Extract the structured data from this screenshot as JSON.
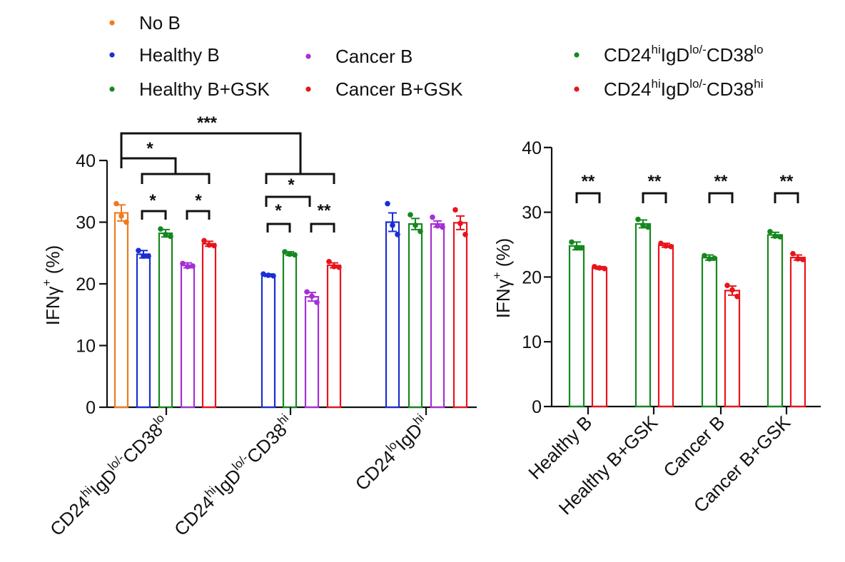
{
  "colors": {
    "no_b": "#f07a1e",
    "healthy_b": "#1a2ed4",
    "healthy_b_gsk": "#14881f",
    "cancer_b": "#a62fd6",
    "cancer_b_gsk": "#e8141b"
  },
  "legend_left": [
    {
      "key": "no_b",
      "label": "No B"
    },
    {
      "key": "healthy_b",
      "label": "Healthy B"
    },
    {
      "key": "healthy_b_gsk",
      "label": "Healthy B+GSK"
    },
    {
      "key": "cancer_b",
      "label": "Cancer B"
    },
    {
      "key": "cancer_b_gsk",
      "label": "Cancer B+GSK"
    }
  ],
  "legend_right": [
    {
      "color": "#14881f",
      "base": "CD24",
      "sup1": "hi",
      "mid": "IgD",
      "sup2": "lo/-",
      "mid2": "CD38",
      "sup3": "lo"
    },
    {
      "color": "#e8141b",
      "base": "CD24",
      "sup1": "hi",
      "mid": "IgD",
      "sup2": "lo/-",
      "mid2": "CD38",
      "sup3": "hi"
    }
  ],
  "chart_data": [
    {
      "type": "bar",
      "ylabel": "IFNγ+ (%)",
      "ylim": [
        0,
        40
      ],
      "yticks": [
        0,
        10,
        20,
        30,
        40
      ],
      "groups": [
        {
          "name": "CD24hiIgDlo/-CD38lo",
          "parts": [
            "CD24",
            "hi",
            "IgD",
            "lo/-",
            "CD38",
            "lo"
          ]
        },
        {
          "name": "CD24hiIgDlo/-CD38hi",
          "parts": [
            "CD24",
            "hi",
            "IgD",
            "lo/-",
            "CD38",
            "hi"
          ]
        },
        {
          "name": "CD24loIgDhi",
          "parts": [
            "CD24",
            "lo",
            "IgD",
            "hi",
            "",
            ""
          ]
        }
      ],
      "series": [
        {
          "name": "No B",
          "key": "no_b",
          "values": [
            31.5,
            null,
            null
          ],
          "errors": [
            1.3,
            null,
            null
          ],
          "points": [
            [
              33.0,
              31.0,
              30.0
            ],
            null,
            null
          ]
        },
        {
          "name": "Healthy B",
          "key": "healthy_b",
          "values": [
            24.8,
            21.4,
            30.0
          ],
          "errors": [
            0.6,
            0.2,
            1.5
          ],
          "points": [
            [
              25.4,
              24.5,
              24.5
            ],
            [
              21.6,
              21.4,
              21.3
            ],
            [
              33.0,
              29.5,
              28.0
            ]
          ]
        },
        {
          "name": "Healthy B+GSK",
          "key": "healthy_b_gsk",
          "values": [
            28.2,
            24.9,
            29.7
          ],
          "errors": [
            0.6,
            0.3,
            0.9
          ],
          "points": [
            [
              28.9,
              28.0,
              27.7
            ],
            [
              25.2,
              24.8,
              24.7
            ],
            [
              31.2,
              29.5,
              28.5
            ]
          ]
        },
        {
          "name": "Cancer B",
          "key": "cancer_b",
          "values": [
            23.0,
            17.9,
            29.7
          ],
          "errors": [
            0.4,
            0.7,
            0.5
          ],
          "points": [
            [
              23.3,
              22.8,
              22.9
            ],
            [
              18.7,
              18.0,
              17.0
            ],
            [
              30.8,
              29.4,
              29.2
            ]
          ]
        },
        {
          "name": "Cancer B+GSK",
          "key": "cancer_b_gsk",
          "values": [
            26.5,
            23.0,
            29.9
          ],
          "errors": [
            0.4,
            0.4,
            1.1
          ],
          "points": [
            [
              27.0,
              26.3,
              26.2
            ],
            [
              23.6,
              22.8,
              22.7
            ],
            [
              32.0,
              29.8,
              28.0
            ]
          ]
        }
      ],
      "annotations": [
        "***",
        "*",
        "*",
        "*",
        "*",
        "*",
        "**"
      ]
    },
    {
      "type": "bar",
      "ylabel": "IFNγ+ (%)",
      "ylim": [
        0,
        40
      ],
      "yticks": [
        0,
        10,
        20,
        30,
        40
      ],
      "categories": [
        "Healthy B",
        "Healthy B+GSK",
        "Cancer B",
        "Cancer B+GSK"
      ],
      "series": [
        {
          "name": "CD24hiIgDlo/-CD38lo",
          "color": "#14881f",
          "values": [
            24.8,
            28.2,
            23.0,
            26.5
          ],
          "errors": [
            0.6,
            0.6,
            0.4,
            0.4
          ],
          "points": [
            [
              25.4,
              24.5,
              24.5
            ],
            [
              28.9,
              28.0,
              27.7
            ],
            [
              23.3,
              22.8,
              22.9
            ],
            [
              27.0,
              26.3,
              26.2
            ]
          ]
        },
        {
          "name": "CD24hiIgDlo/-CD38hi",
          "color": "#e8141b",
          "values": [
            21.4,
            24.9,
            17.9,
            23.0
          ],
          "errors": [
            0.2,
            0.3,
            0.7,
            0.4
          ],
          "points": [
            [
              21.6,
              21.4,
              21.3
            ],
            [
              25.2,
              24.8,
              24.7
            ],
            [
              18.7,
              18.0,
              17.0
            ],
            [
              23.6,
              22.8,
              22.7
            ]
          ]
        }
      ],
      "annotations": [
        "**",
        "**",
        "**",
        "**"
      ]
    }
  ]
}
